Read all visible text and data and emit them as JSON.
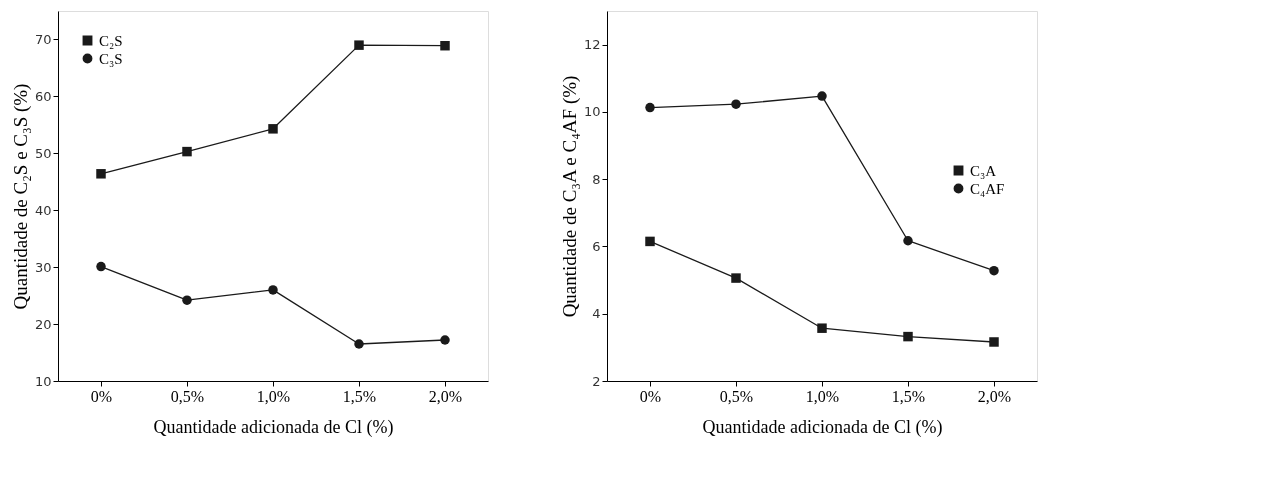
{
  "chart_data": [
    {
      "type": "line",
      "xlabel": "Quantidade adicionada de Cl (%)",
      "ylabel": "Quantidade de C₂S e C₃S (%)",
      "categories": [
        "0%",
        "0,5%",
        "1,0%",
        "1,5%",
        "2,0%"
      ],
      "ylim": [
        10,
        75
      ],
      "yticks": [
        10,
        20,
        30,
        40,
        50,
        60,
        70
      ],
      "grid": false,
      "legend": "top left",
      "series": [
        {
          "name": "C₂S",
          "color": "#1a1a1a",
          "marker": "square",
          "values": [
            46.4,
            50.3,
            54.3,
            69.0,
            68.9
          ]
        },
        {
          "name": "C₃S",
          "color": "#1a1a1a",
          "marker": "circle",
          "values": [
            30.1,
            24.2,
            26.0,
            16.5,
            17.2
          ]
        }
      ]
    },
    {
      "type": "line",
      "xlabel": "Quantidade adicionada de Cl (%)",
      "ylabel": "Quantidade de C₃A e C₄AF (%)",
      "categories": [
        "0%",
        "0,5%",
        "1,0%",
        "1,5%",
        "2,0%"
      ],
      "ylim": [
        2,
        13
      ],
      "yticks": [
        2,
        4,
        6,
        8,
        10,
        12
      ],
      "grid": false,
      "legend": "right",
      "series": [
        {
          "name": "C₃A",
          "color": "#1a1a1a",
          "marker": "square",
          "values": [
            6.15,
            5.06,
            3.57,
            3.32,
            3.16
          ]
        },
        {
          "name": "C₄AF",
          "color": "#1a1a1a",
          "marker": "circle",
          "values": [
            10.13,
            10.23,
            10.47,
            6.17,
            5.28
          ]
        }
      ]
    }
  ]
}
